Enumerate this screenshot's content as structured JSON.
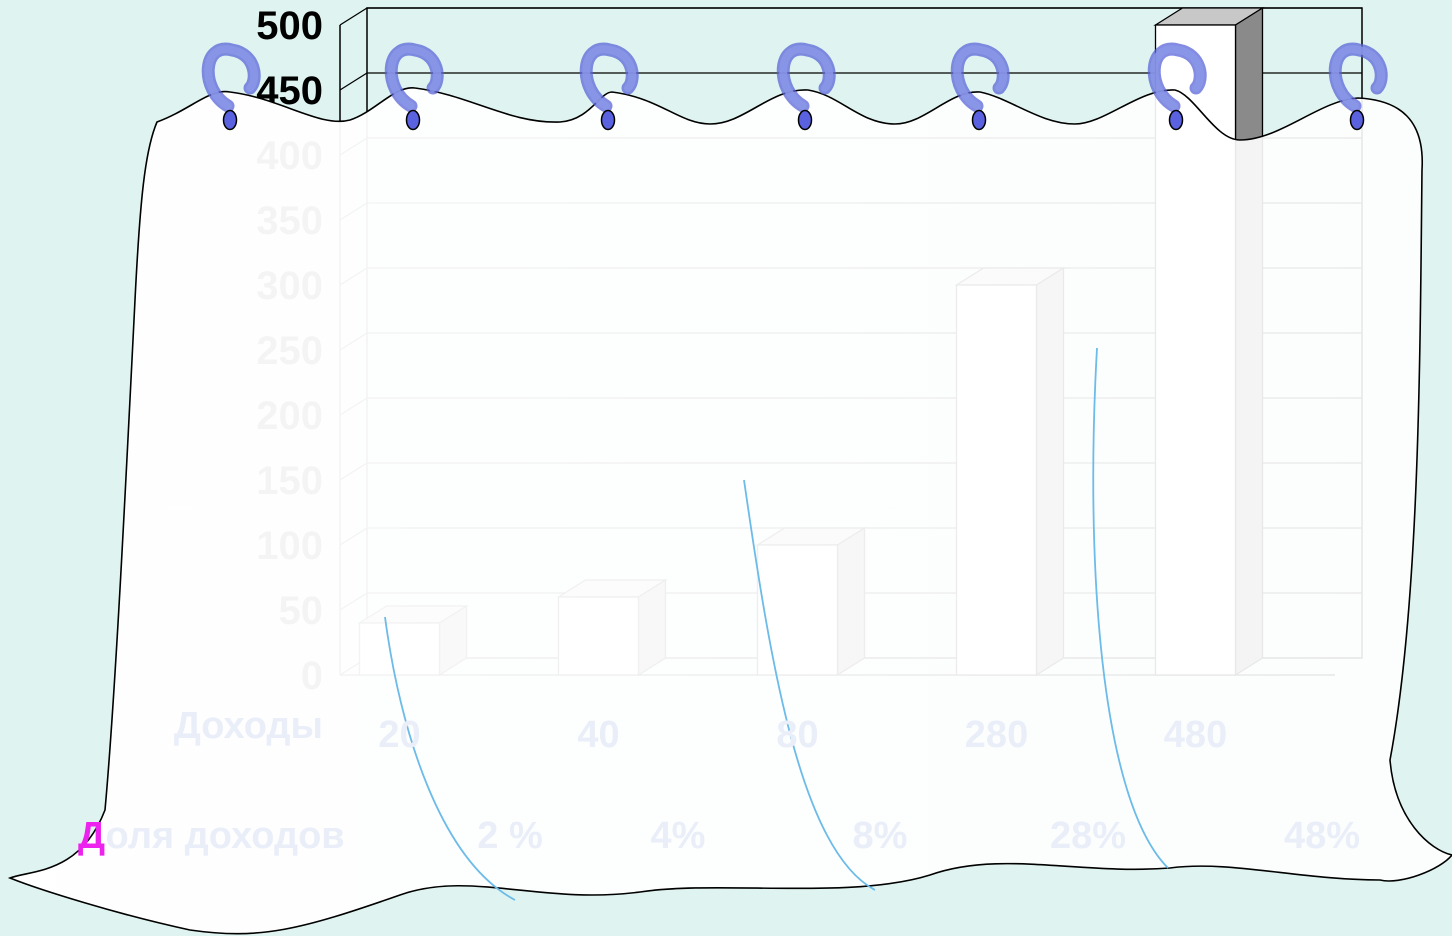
{
  "chart_data": {
    "type": "bar",
    "title": "",
    "xlabel": "",
    "ylabel": "",
    "ylim": [
      0,
      500
    ],
    "y_ticks": [
      0,
      50,
      100,
      150,
      200,
      250,
      300,
      350,
      400,
      450,
      500
    ],
    "categories": [
      "20",
      "40",
      "80",
      "280",
      "480"
    ],
    "values": [
      40,
      60,
      100,
      300,
      500
    ],
    "grid": true,
    "legend": "none"
  },
  "table_rows": {
    "income_label": "Доходы",
    "income_values": [
      "20",
      "40",
      "80",
      "280",
      "480"
    ],
    "share_label": "Доля доходов",
    "share_values": [
      "2 %",
      "4%",
      "8%",
      "28%",
      "48%"
    ]
  },
  "colors": {
    "background": "#dff4f0",
    "bar_front": "#ffffff",
    "bar_side": "#8a8a8a",
    "bar_top": "#c8c8c8",
    "curtain": "#f7fcfb",
    "curtain_fold": "#6cbbe8",
    "ring": "#8b97e6",
    "ring_hole": "#5a62e0",
    "first_letter": "#ee22ee"
  },
  "icons": {
    "curtain": "curtain-icon",
    "ring": "curtain-ring-icon"
  }
}
